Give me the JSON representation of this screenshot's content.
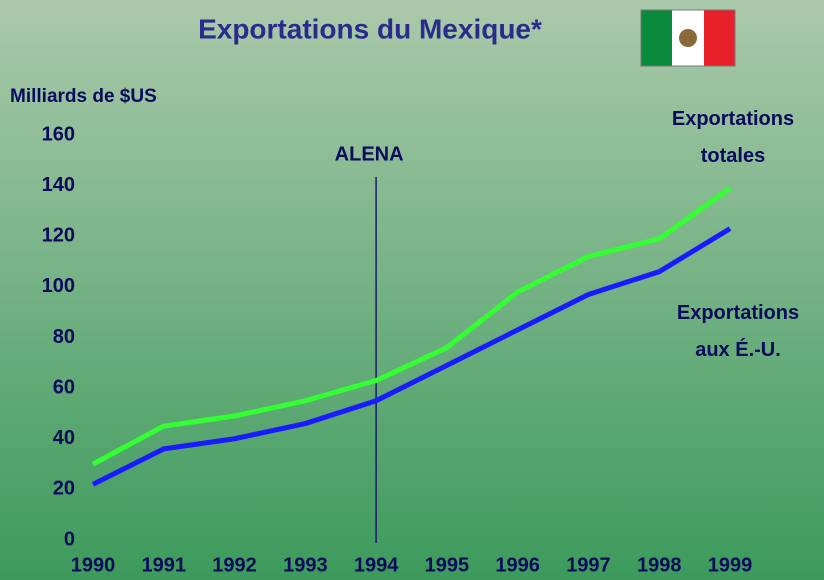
{
  "chart_data": {
    "type": "line",
    "title": "Exportations du Mexique*",
    "y_label": "Milliards de $US",
    "x": [
      1990,
      1991,
      1992,
      1993,
      1994,
      1995,
      1996,
      1997,
      1998,
      1999
    ],
    "xlim": [
      1990,
      1999
    ],
    "xticks": [
      1990,
      1991,
      1992,
      1993,
      1994,
      1995,
      1996,
      1997,
      1998,
      1999
    ],
    "ylim": [
      0,
      160
    ],
    "yticks": [
      0,
      20,
      40,
      60,
      80,
      100,
      120,
      140,
      160
    ],
    "series": [
      {
        "name": "Exportations totales",
        "color": "#33ff33",
        "values": [
          30,
          45,
          49,
          55,
          63,
          76,
          98,
          112,
          119,
          139
        ]
      },
      {
        "name": "Exportations aux É.-U.",
        "color": "#1a1aff",
        "values": [
          22,
          36,
          40,
          46,
          55,
          69,
          83,
          97,
          106,
          123
        ]
      }
    ],
    "annotations": [
      {
        "text": "ALENA",
        "x": 1994
      }
    ]
  }
}
